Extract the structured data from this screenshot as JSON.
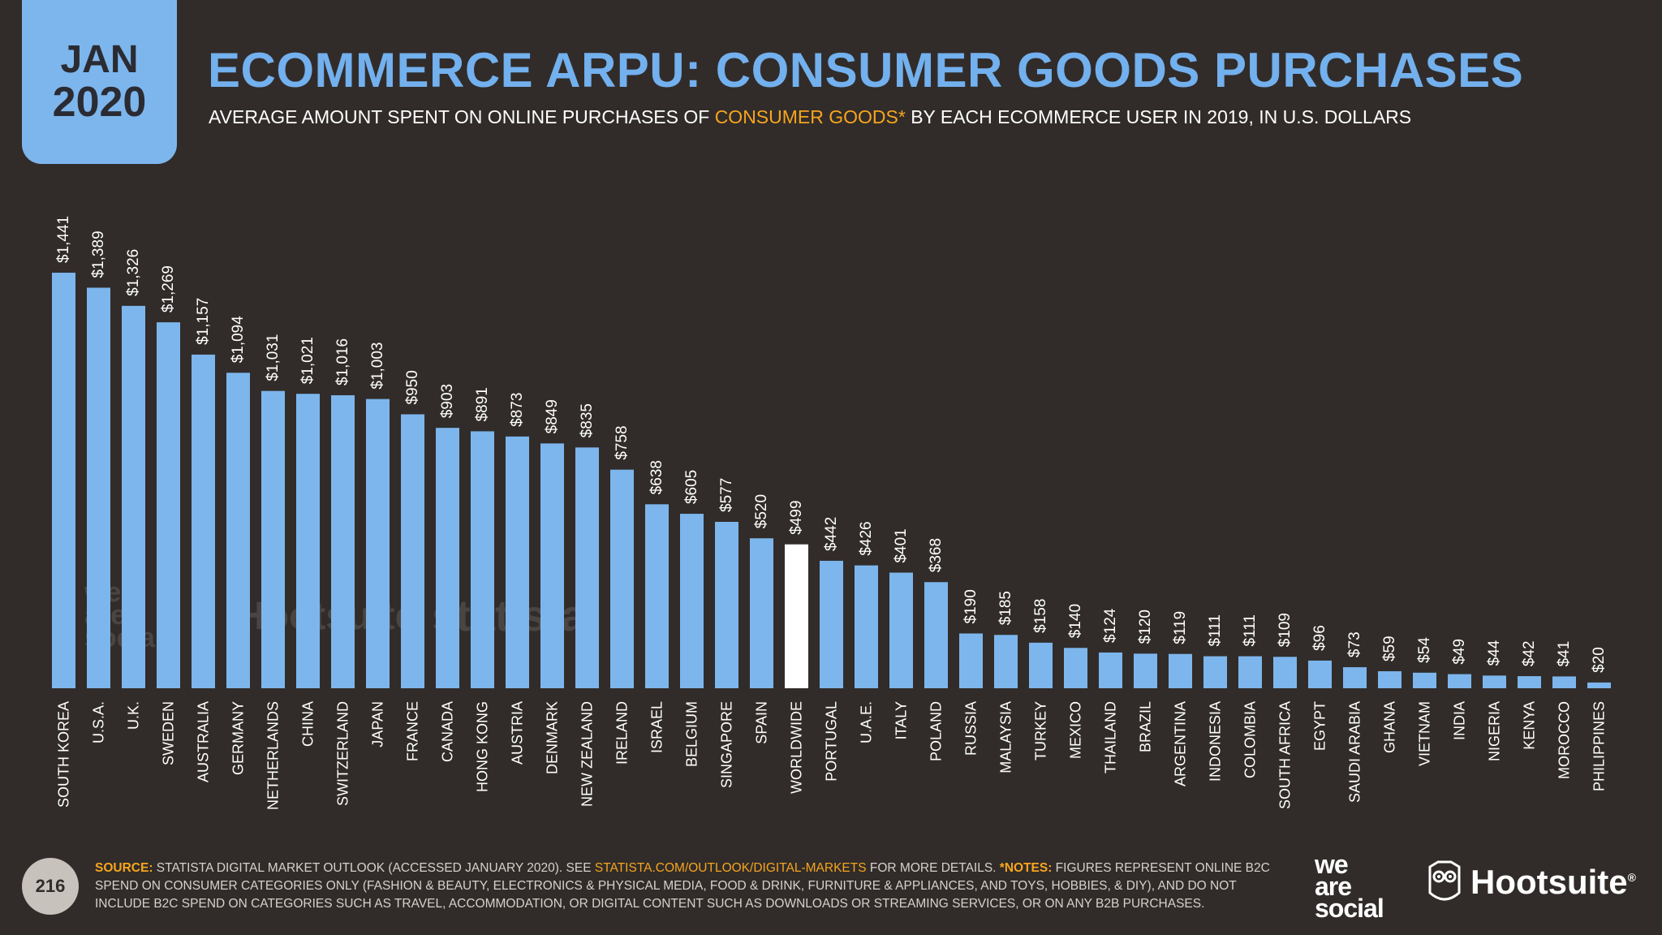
{
  "header": {
    "date_month": "JAN",
    "date_year": "2020",
    "title": "ECOMMERCE ARPU: CONSUMER GOODS PURCHASES",
    "subtitle_pre": "AVERAGE AMOUNT SPENT ON ONLINE PURCHASES OF ",
    "subtitle_highlight": "CONSUMER GOODS*",
    "subtitle_post": " BY EACH ECOMMERCE USER IN 2019, IN U.S. DOLLARS"
  },
  "chart_data": {
    "type": "bar",
    "categories": [
      "SOUTH KOREA",
      "U.S.A.",
      "U.K.",
      "SWEDEN",
      "AUSTRALIA",
      "GERMANY",
      "NETHERLANDS",
      "CHINA",
      "SWITZERLAND",
      "JAPAN",
      "FRANCE",
      "CANADA",
      "HONG KONG",
      "AUSTRIA",
      "DENMARK",
      "NEW ZEALAND",
      "IRELAND",
      "ISRAEL",
      "BELGIUM",
      "SINGAPORE",
      "SPAIN",
      "WORLDWIDE",
      "PORTUGAL",
      "U.A.E.",
      "ITALY",
      "POLAND",
      "RUSSIA",
      "MALAYSIA",
      "TURKEY",
      "MEXICO",
      "THAILAND",
      "BRAZIL",
      "ARGENTINA",
      "INDONESIA",
      "COLOMBIA",
      "SOUTH AFRICA",
      "EGYPT",
      "SAUDI ARABIA",
      "GHANA",
      "VIETNAM",
      "INDIA",
      "NIGERIA",
      "KENYA",
      "MOROCCO",
      "PHILIPPINES"
    ],
    "values": [
      1441,
      1389,
      1326,
      1269,
      1157,
      1094,
      1031,
      1021,
      1016,
      1003,
      950,
      903,
      891,
      873,
      849,
      835,
      758,
      638,
      605,
      577,
      520,
      499,
      442,
      426,
      401,
      368,
      190,
      185,
      158,
      140,
      124,
      120,
      119,
      111,
      111,
      109,
      96,
      73,
      59,
      54,
      49,
      44,
      42,
      41,
      20
    ],
    "value_labels": [
      "$1,441",
      "$1,389",
      "$1,326",
      "$1,269",
      "$1,157",
      "$1,094",
      "$1,031",
      "$1,021",
      "$1,016",
      "$1,003",
      "$950",
      "$903",
      "$891",
      "$873",
      "$849",
      "$835",
      "$758",
      "$638",
      "$605",
      "$577",
      "$520",
      "$499",
      "$442",
      "$426",
      "$401",
      "$368",
      "$190",
      "$185",
      "$158",
      "$140",
      "$124",
      "$120",
      "$119",
      "$111",
      "$111",
      "$109",
      "$96",
      "$73",
      "$59",
      "$54",
      "$49",
      "$44",
      "$42",
      "$41",
      "$20"
    ],
    "highlight_category": "WORLDWIDE",
    "bar_color": "#7db6ec",
    "highlight_color": "#ffffff",
    "ylim": [
      0,
      1441
    ]
  },
  "watermarks": {
    "was_line1": "we",
    "was_line2": "are",
    "was_line3": "social",
    "hootsuite": "Hootsuite",
    "statista": "statista"
  },
  "footer": {
    "page_number": "216",
    "source_label": "SOURCE:",
    "source_text": " STATISTA DIGITAL MARKET OUTLOOK (ACCESSED JANUARY 2020). SEE ",
    "source_link": "STATISTA.COM/OUTLOOK/DIGITAL-MARKETS",
    "source_after": " FOR MORE DETAILS. ",
    "notes_label": "*NOTES:",
    "notes_text": " FIGURES REPRESENT ONLINE B2C SPEND ON CONSUMER CATEGORIES ONLY (FASHION & BEAUTY, ELECTRONICS & PHYSICAL MEDIA, FOOD & DRINK, FURNITURE & APPLIANCES, AND TOYS, HOBBIES, & DIY), AND DO NOT INCLUDE B2C SPEND ON CATEGORIES SUCH AS TRAVEL, ACCOMMODATION, OR DIGITAL CONTENT SUCH AS DOWNLOADS OR STREAMING SERVICES, OR ON ANY B2B PURCHASES."
  },
  "logos": {
    "was_line1": "we",
    "was_line2": "are",
    "was_line3": "social",
    "hootsuite": "Hootsuite",
    "hootsuite_mark": "®",
    "owl_icon": "owl-icon"
  }
}
